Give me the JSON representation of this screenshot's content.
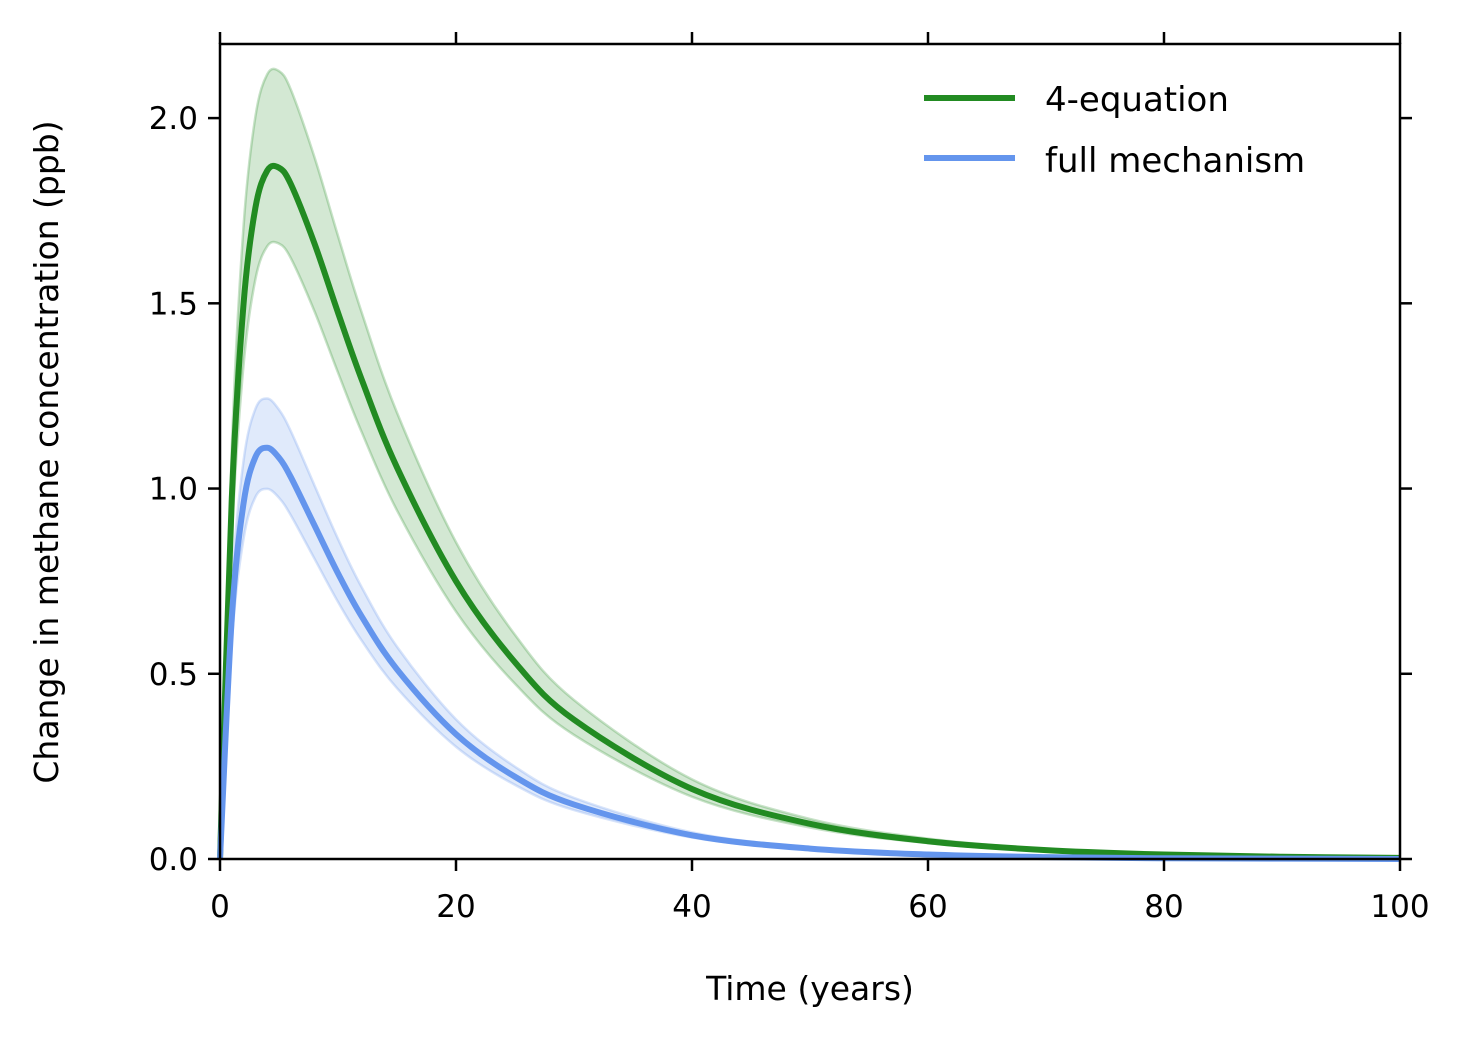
{
  "chart_data": {
    "type": "line",
    "title": "",
    "xlabel": "Time (years)",
    "ylabel": "Change in methane concentration (ppb)",
    "xlim": [
      0,
      100
    ],
    "ylim": [
      0,
      2.2
    ],
    "xticks": [
      "0",
      "20",
      "40",
      "60",
      "80",
      "100"
    ],
    "yticks": [
      "0.0",
      "0.5",
      "1.0",
      "1.5",
      "2.0"
    ],
    "grid": false,
    "legend_position": "top-right",
    "x": [
      0,
      1,
      2,
      3,
      4,
      5,
      6,
      8,
      10,
      12,
      15,
      20,
      25,
      30,
      40,
      50,
      60,
      70,
      80,
      90,
      100
    ],
    "series": [
      {
        "name": "4-equation",
        "color": "#228B22",
        "values": [
          0,
          0.974,
          1.5,
          1.758,
          1.858,
          1.866,
          1.822,
          1.662,
          1.475,
          1.295,
          1.057,
          0.75,
          0.531,
          0.376,
          0.189,
          0.095,
          0.048,
          0.024,
          0.012,
          0.006,
          0.003
        ],
        "band_upper": [
          0,
          1.11,
          1.71,
          2.004,
          2.118,
          2.127,
          2.077,
          1.895,
          1.682,
          1.476,
          1.205,
          0.855,
          0.605,
          0.429,
          0.215,
          0.108,
          0.055,
          0.027,
          0.014,
          0.007,
          0.003
        ],
        "band_lower": [
          0,
          0.867,
          1.335,
          1.565,
          1.654,
          1.661,
          1.622,
          1.479,
          1.313,
          1.153,
          0.941,
          0.668,
          0.473,
          0.335,
          0.168,
          0.085,
          0.043,
          0.021,
          0.011,
          0.005,
          0.003
        ]
      },
      {
        "name": "full mechanism",
        "color": "#6495ED",
        "values": [
          0,
          0.651,
          0.961,
          1.085,
          1.11,
          1.083,
          1.031,
          0.901,
          0.771,
          0.655,
          0.512,
          0.337,
          0.222,
          0.147,
          0.064,
          0.028,
          0.012,
          0.005,
          0.002,
          0.001,
          0.0
        ],
        "band_upper": [
          0,
          0.729,
          1.076,
          1.215,
          1.243,
          1.213,
          1.155,
          1.009,
          0.864,
          0.734,
          0.573,
          0.377,
          0.249,
          0.165,
          0.072,
          0.031,
          0.013,
          0.006,
          0.002,
          0.001,
          0
        ],
        "band_lower": [
          0,
          0.586,
          0.865,
          0.977,
          0.999,
          0.975,
          0.928,
          0.811,
          0.694,
          0.59,
          0.461,
          0.303,
          0.2,
          0.132,
          0.058,
          0.025,
          0.011,
          0.005,
          0.002,
          0.001,
          0
        ]
      }
    ]
  }
}
